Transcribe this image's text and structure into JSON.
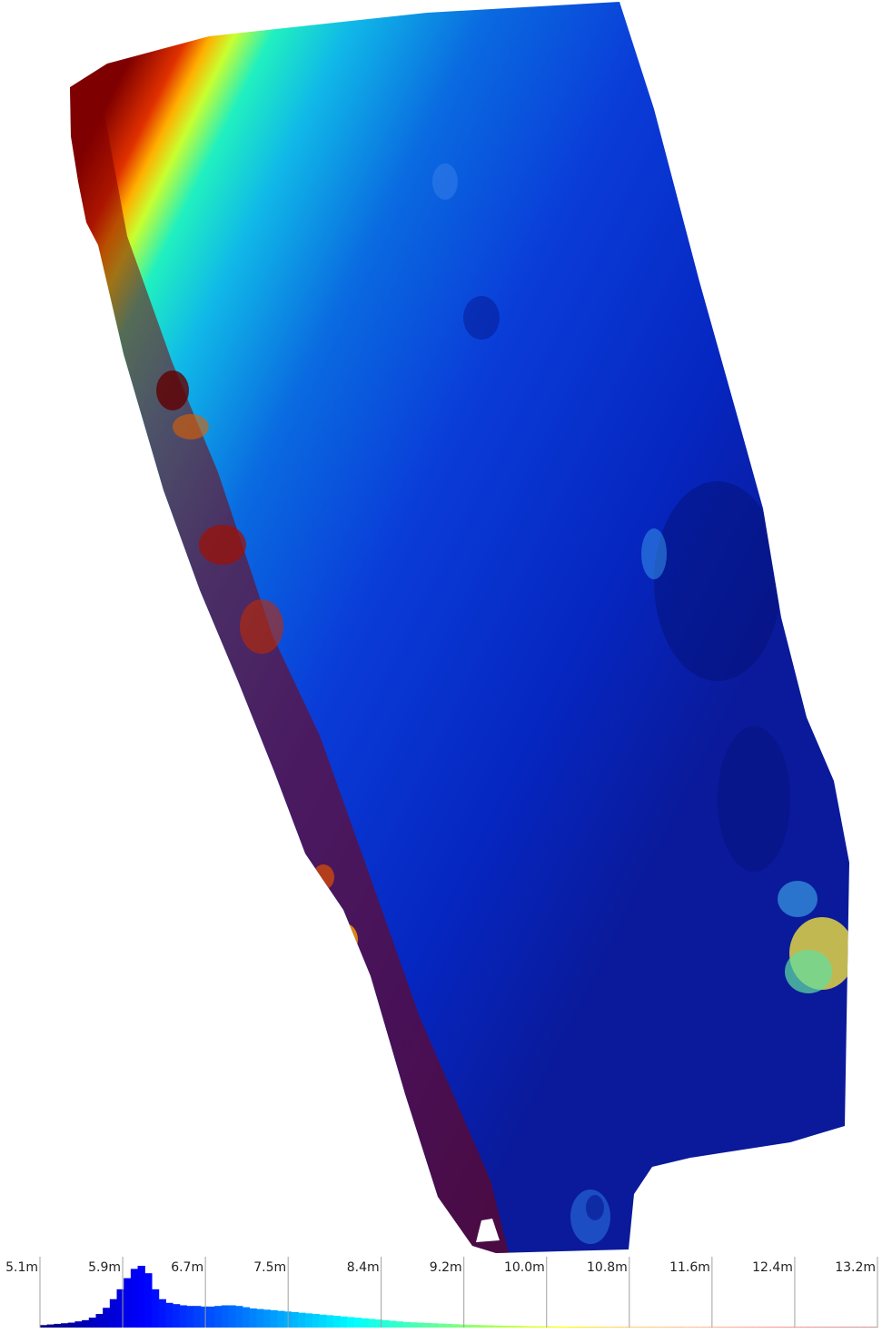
{
  "chart_data": {
    "type": "heatmap",
    "unit": "m",
    "colormap": "jet",
    "color_range": [
      5.1,
      13.2
    ],
    "colormap_stops": [
      "#00007f",
      "#0000ff",
      "#007fff",
      "#00ffff",
      "#7fff7f",
      "#ffff00",
      "#ff7f00",
      "#ff0000",
      "#7f0000"
    ],
    "histogram": {
      "bins_start": 5.1,
      "bins_end": 13.2,
      "counts": [
        4,
        5,
        6,
        7,
        8,
        10,
        12,
        16,
        22,
        32,
        46,
        62,
        80,
        95,
        100,
        88,
        62,
        46,
        40,
        38,
        36,
        35,
        35,
        34,
        34,
        35,
        36,
        36,
        35,
        33,
        31,
        30,
        29,
        28,
        27,
        26,
        25,
        24,
        23,
        22,
        21,
        20,
        19,
        18,
        17,
        16,
        15,
        14,
        13,
        12,
        11,
        10,
        9,
        8.5,
        8,
        7.5,
        7,
        6.5,
        6,
        5.5,
        5,
        4.6,
        4.2,
        3.9,
        3.6,
        3.3,
        3.0,
        2.8,
        2.6,
        2.4,
        2.2,
        2.0,
        1.9,
        1.8,
        1.7,
        1.6,
        1.5,
        1.4,
        1.3,
        1.2,
        1.1,
        1.0,
        1.0,
        0.9,
        0.9,
        0.8,
        0.8,
        0.8,
        0.7,
        0.7,
        0.7,
        0.7,
        0.6,
        0.6,
        0.6,
        0.6,
        0.6,
        0.6,
        0.6,
        0.6,
        0.6,
        0.6,
        0.6,
        0.6,
        0.6,
        0.6,
        0.6,
        0.6,
        0.6,
        0.6,
        0.6,
        0.6,
        0.6,
        0.6,
        0.6,
        0.6,
        0.6,
        0.6,
        0.6,
        0.6
      ]
    },
    "tick_labels": [
      "5.1m",
      "5.9m",
      "6.7m",
      "7.5m",
      "8.4m",
      "9.2m",
      "10.0m",
      "10.8m",
      "11.6m",
      "12.4m",
      "13.2m"
    ],
    "tick_values": [
      5.1,
      5.9,
      6.7,
      7.5,
      8.4,
      9.2,
      10.0,
      10.8,
      11.6,
      12.4,
      13.2
    ]
  }
}
